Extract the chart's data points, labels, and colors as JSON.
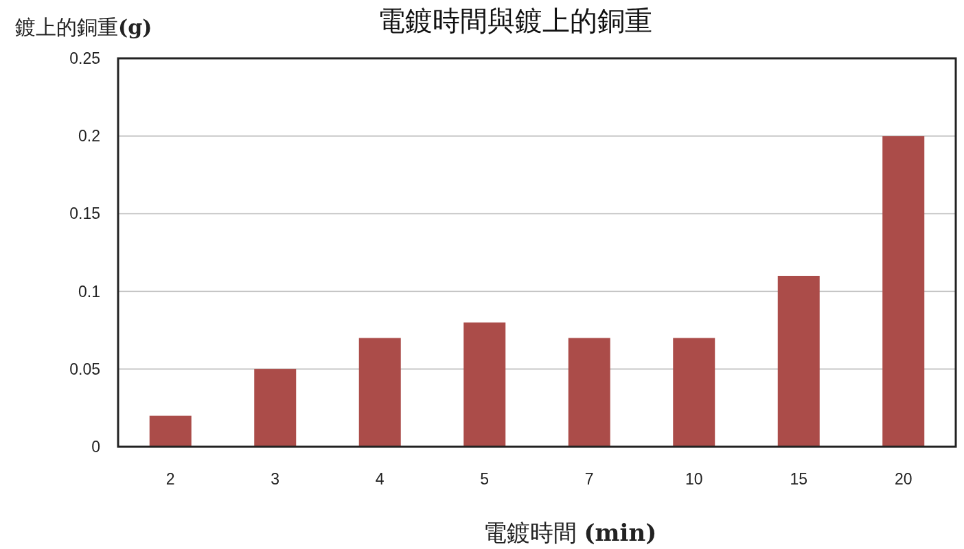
{
  "chart_data": {
    "type": "bar",
    "title": "電鍍時間與鍍上的銅重",
    "xlabel": "電鍍時間 **(min)**",
    "ylabel": "鍍上的銅重**(g)**",
    "categories": [
      "2",
      "3",
      "4",
      "5",
      "7",
      "10",
      "15",
      "20"
    ],
    "values": [
      0.02,
      0.05,
      0.07,
      0.08,
      0.07,
      0.07,
      0.11,
      0.2
    ],
    "color": "#ab4c49",
    "ylim": [
      0,
      0.25
    ],
    "yticks": [
      0,
      0.05,
      0.1,
      0.15,
      0.2,
      0.25
    ],
    "grid": "y"
  }
}
